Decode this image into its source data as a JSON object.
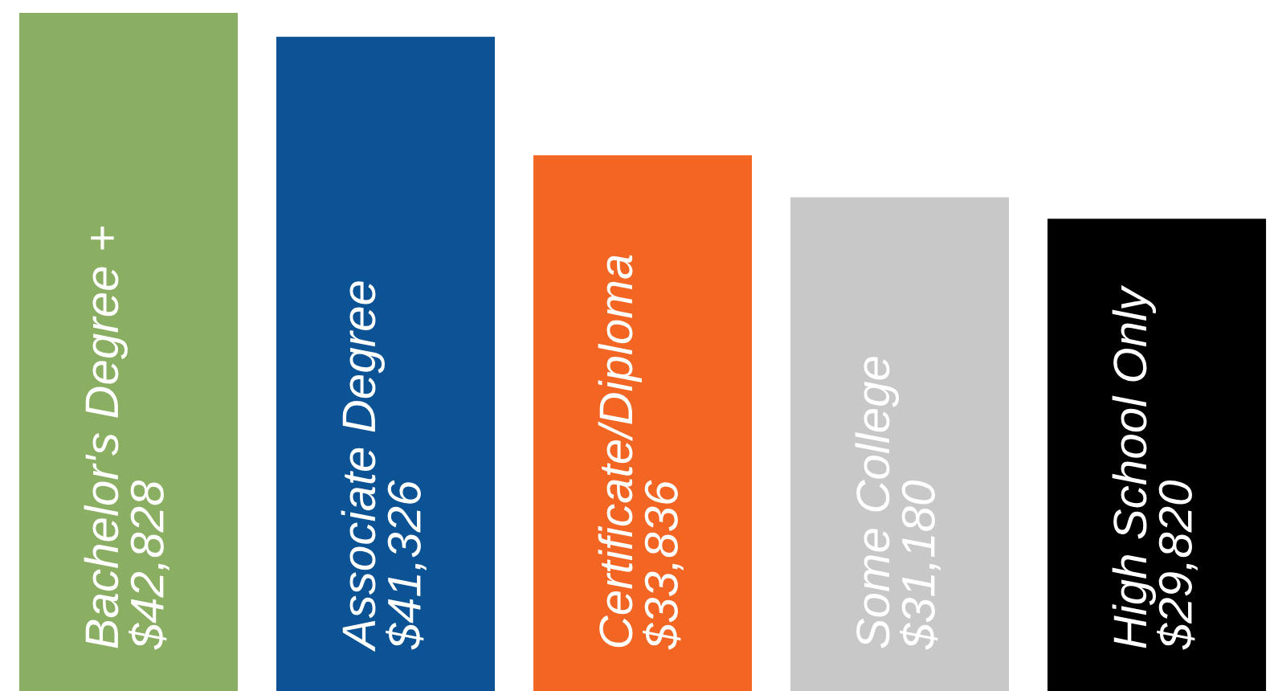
{
  "chart_data": {
    "type": "bar",
    "categories": [
      "Bachelor's Degree +",
      "Associate Degree",
      "Certificate/Diploma",
      "Some College",
      "High School Only"
    ],
    "values": [
      42828,
      41326,
      33836,
      31180,
      29820
    ],
    "colors": [
      "#8aae62",
      "#0b5394",
      "#f26522",
      "#c8c8c8",
      "#000000"
    ],
    "value_labels": [
      "$42,828",
      "$41,326",
      "$33,836",
      "$31,180",
      "$29,820"
    ]
  }
}
